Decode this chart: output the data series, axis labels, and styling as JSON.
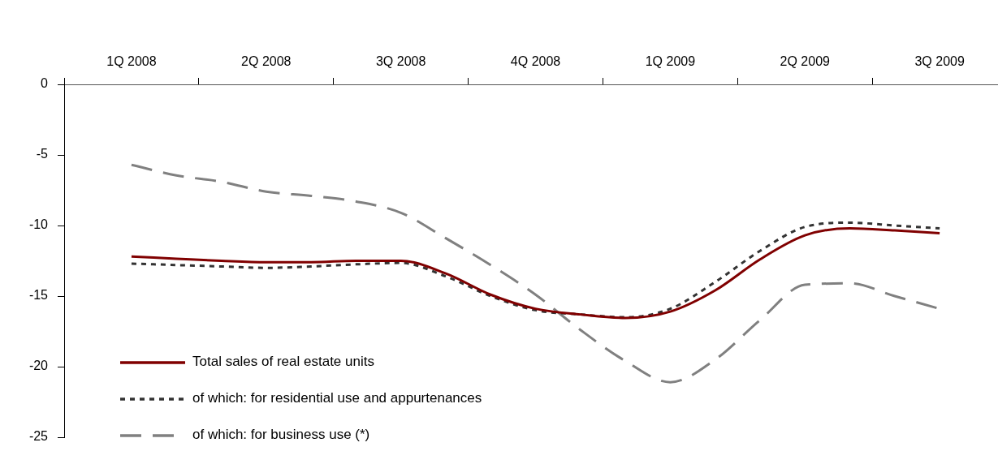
{
  "chart_data": {
    "type": "line",
    "categories": [
      "1Q 2008",
      null,
      null,
      "2Q 2008",
      null,
      null,
      "3Q 2008",
      null,
      null,
      "4Q 2008",
      null,
      null,
      "1Q 2009",
      null,
      null,
      "2Q 2009",
      null,
      null,
      "3Q 2009"
    ],
    "series": [
      {
        "name": "Total sales of real estate units",
        "color": "#800000",
        "line_style": "solid",
        "values": [
          -12.2,
          -12.35,
          -12.5,
          -12.6,
          -12.6,
          -12.5,
          -12.5,
          -13.4,
          -14.9,
          -15.9,
          -16.3,
          -16.55,
          -16.1,
          -14.6,
          -12.4,
          -10.7,
          -10.2,
          -10.35,
          -10.55
        ]
      },
      {
        "name": "of which: for residential use and appurtenances",
        "color": "#333333",
        "line_style": "dotted",
        "values": [
          -12.7,
          -12.8,
          -12.9,
          -13.0,
          -12.9,
          -12.75,
          -12.65,
          -13.6,
          -15.0,
          -16.0,
          -16.3,
          -16.5,
          -15.9,
          -14.0,
          -11.8,
          -10.1,
          -9.8,
          -10.0,
          -10.2
        ]
      },
      {
        "name": "of which: for business use (*)",
        "color": "#808080",
        "line_style": "dashed",
        "values": [
          -5.7,
          -6.45,
          -6.9,
          -7.6,
          -7.9,
          -8.3,
          -9.1,
          -10.9,
          -12.8,
          -14.9,
          -17.4,
          -19.6,
          -21.1,
          -19.5,
          -16.7,
          -14.2,
          -14.1,
          -15.0,
          -15.9
        ]
      }
    ],
    "ylim": [
      -25,
      0
    ],
    "yticks": [
      -25,
      -20,
      -15,
      -10,
      -5,
      0
    ],
    "grid": false,
    "legend": "bottom left",
    "marker": "none"
  }
}
